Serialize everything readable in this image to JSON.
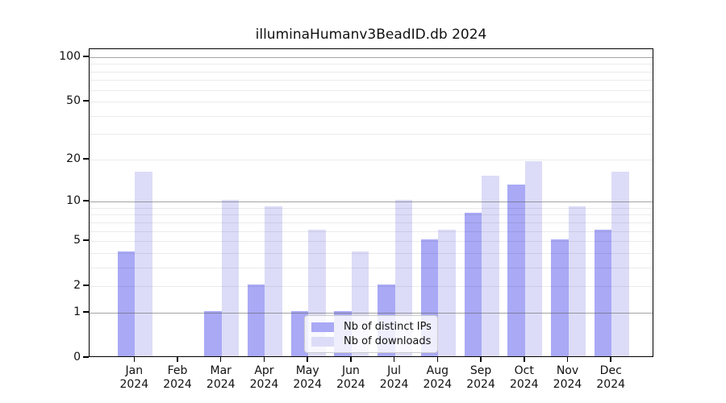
{
  "chart_data": {
    "type": "bar",
    "title": "illuminaHumanv3BeadID.db 2024",
    "months": [
      "Jan",
      "Feb",
      "Mar",
      "Apr",
      "May",
      "Jun",
      "Jul",
      "Aug",
      "Sep",
      "Oct",
      "Nov",
      "Dec"
    ],
    "year_label": "2024",
    "series": [
      {
        "name": "Nb of distinct IPs",
        "color": "#a9a9f6",
        "values": [
          4,
          0,
          1,
          2,
          1,
          1,
          2,
          5,
          8,
          13,
          5,
          6
        ]
      },
      {
        "name": "Nb of downloads",
        "color": "#dcdcf8",
        "values": [
          16,
          0,
          10,
          9,
          6,
          4,
          10,
          6,
          15,
          19,
          9,
          16
        ]
      }
    ],
    "y_axis": {
      "scale": "log1p",
      "tick_labels": [
        0,
        1,
        2,
        5,
        10,
        20,
        50,
        100
      ],
      "major_gridlines": [
        1,
        10,
        100
      ],
      "minor_gridlines": [
        2,
        3,
        4,
        5,
        6,
        7,
        8,
        9,
        20,
        30,
        40,
        50,
        60,
        70,
        80,
        90
      ],
      "ylim": [
        0,
        113
      ]
    },
    "xlabel": "",
    "ylabel": "",
    "grid": true,
    "legend_position": "lower-center",
    "colors": {
      "axis": "#000000",
      "text": "#111111",
      "major_grid": "#aaaaaa",
      "minor_grid": "#efefef",
      "background": "#ffffff"
    }
  }
}
